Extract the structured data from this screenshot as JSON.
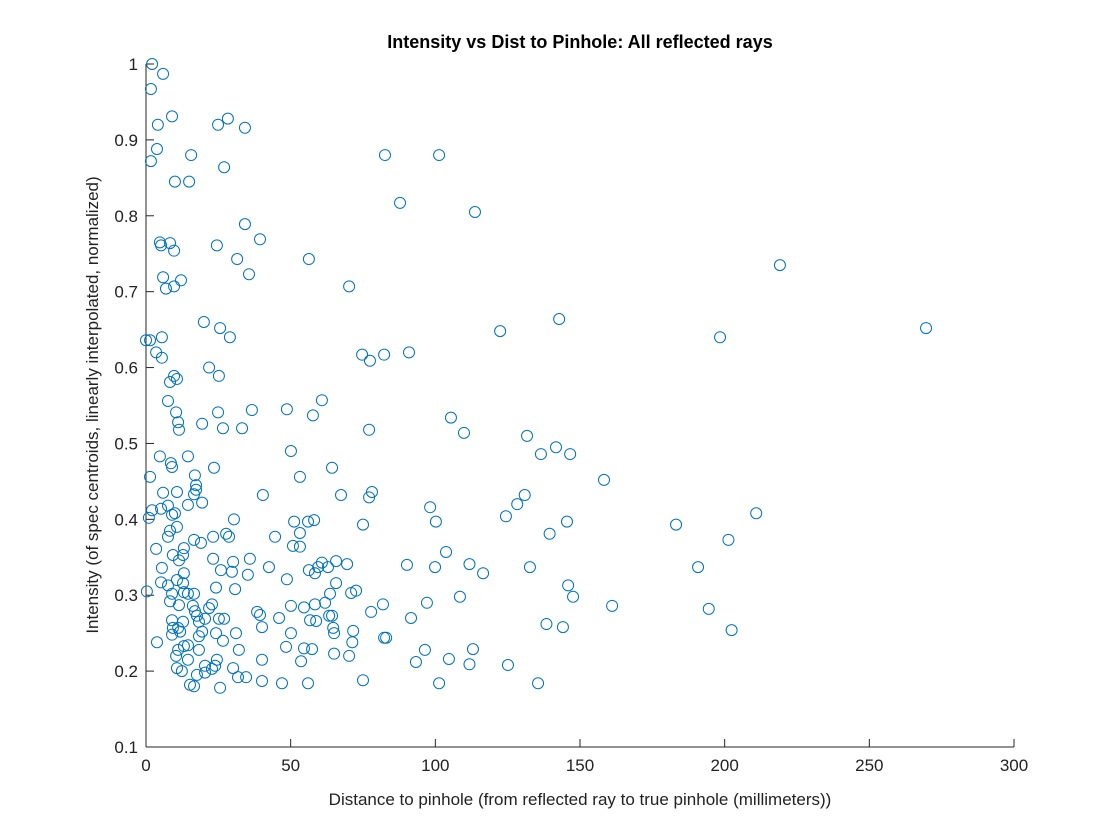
{
  "chart_data": {
    "type": "scatter",
    "title": "Intensity vs Dist to Pinhole: All reflected rays",
    "x_label": "Distance to pinhole (from reflected ray to true pinhole (millimeters))",
    "y_label": "Intensity (of spec centroids, linearly interpolated, normalized)",
    "xlim": [
      0,
      300
    ],
    "ylim": [
      0.1,
      1
    ],
    "xticks": [
      0,
      50,
      100,
      150,
      200,
      250,
      300
    ],
    "yticks": [
      0.1,
      0.2,
      0.3,
      0.4,
      0.5,
      0.6,
      0.7,
      0.8,
      0.9,
      1
    ],
    "color": "#0072bd",
    "x": [
      2.1,
      5.9,
      1.7,
      4.1,
      9.0,
      1.7,
      3.8,
      15.6,
      10.0,
      14.9,
      24.9,
      28.3,
      34.2,
      27.0,
      82.6,
      101.3,
      87.8,
      113.7,
      34.2,
      39.4,
      24.5,
      4.8,
      5.2,
      8.3,
      9.7,
      31.5,
      56.3,
      35.6,
      5.9,
      12.1,
      9.7,
      6.9,
      70.2,
      219.1,
      269.6,
      25.6,
      142.8,
      122.4,
      198.4,
      20.0,
      29.0,
      0,
      1.4,
      5.5,
      5.5,
      3.5,
      21.8,
      25.2,
      9.7,
      8.3,
      10.7,
      90.9,
      82.3,
      74.7,
      77.4,
      7.6,
      10.4,
      24.9,
      36.6,
      48.7,
      57.7,
      60.8,
      11.1,
      11.4,
      19.4,
      26.6,
      33.2,
      77.1,
      105.4,
      109.9,
      131.7,
      141.7,
      136.5,
      146.6,
      50.1,
      14.5,
      4.8,
      23.5,
      64.3,
      8.6,
      9.0,
      16.9,
      1.4,
      53.2,
      158.3,
      17.3,
      17.3,
      16.6,
      5.9,
      10.7,
      40.4,
      67.4,
      78.1,
      77.1,
      130.9,
      128.3,
      98.2,
      19.4,
      14.5,
      7.6,
      5.2,
      2.1,
      10.0,
      9.0,
      1.0,
      30.4,
      58.1,
      51.2,
      75.0,
      100.2,
      124.4,
      145.5,
      183.2,
      210.9,
      10.7,
      8.3,
      7.6,
      16.6,
      23.2,
      27.7,
      28.7,
      44.6,
      53.2,
      56.0,
      139.5,
      201.3,
      3.5,
      13.1,
      12.8,
      9.3,
      19.0,
      11.4,
      23.2,
      35.9,
      50.8,
      53.2,
      59.5,
      60.8,
      65.7,
      69.5,
      62.9,
      56.3,
      58.4,
      42.5,
      30.1,
      29.7,
      25.9,
      35.2,
      5.5,
      13.1,
      90.2,
      99.9,
      103.7,
      111.8,
      116.5,
      132.7,
      190.8,
      5.2,
      7.6,
      10.7,
      12.8,
      13.1,
      16.6,
      14.5,
      24.2,
      30.8,
      48.7,
      65.7,
      63.6,
      70.9,
      72.6,
      145.9,
      147.6,
      108.5,
      0.3,
      9.0,
      8.3,
      11.4,
      16.2,
      22.8,
      50.1,
      54.6,
      58.4,
      61.9,
      81.9,
      97.1,
      161.1,
      194.5,
      38.4,
      39.4,
      16.9,
      17.6,
      63.3,
      64.3,
      77.8,
      25.2,
      27.0,
      21.8,
      46.0,
      56.7,
      91.6,
      9.0,
      12.8,
      11.1,
      18.3,
      20.4,
      9.3,
      9.0,
      19.4,
      11.8,
      18.3,
      24.2,
      31.1,
      40.1,
      50.1,
      58.8,
      64.7,
      65.0,
      71.6,
      138.4,
      144.1,
      202.4,
      3.8,
      13.1,
      14.5,
      26.6,
      11.1,
      18.3,
      32.1,
      48.4,
      54.6,
      57.4,
      71.3,
      82.3,
      83.0,
      65.0,
      70.2,
      96.4,
      113.0,
      10.4,
      14.5,
      24.5,
      40.1,
      53.6,
      93.3,
      104.7,
      111.8,
      125.1,
      20.4,
      23.9,
      30.1,
      10.7,
      12.4,
      22.8,
      20.4,
      17.6,
      31.8,
      34.6,
      40.1,
      47.0,
      56.0,
      75.0,
      101.3,
      135.5,
      15.2,
      16.6,
      25.6
    ],
    "values": [
      1.0,
      0.987,
      0.967,
      0.92,
      0.931,
      0.872,
      0.888,
      0.88,
      0.845,
      0.845,
      0.92,
      0.928,
      0.916,
      0.864,
      0.88,
      0.88,
      0.817,
      0.805,
      0.789,
      0.769,
      0.761,
      0.765,
      0.761,
      0.764,
      0.754,
      0.743,
      0.743,
      0.723,
      0.719,
      0.715,
      0.707,
      0.704,
      0.707,
      0.735,
      0.652,
      0.652,
      0.664,
      0.648,
      0.64,
      0.66,
      0.64,
      0.636,
      0.636,
      0.64,
      0.613,
      0.62,
      0.6,
      0.589,
      0.589,
      0.581,
      0.585,
      0.62,
      0.617,
      0.617,
      0.609,
      0.556,
      0.541,
      0.541,
      0.544,
      0.545,
      0.537,
      0.557,
      0.528,
      0.518,
      0.526,
      0.52,
      0.52,
      0.518,
      0.534,
      0.514,
      0.51,
      0.495,
      0.486,
      0.486,
      0.49,
      0.483,
      0.483,
      0.468,
      0.468,
      0.474,
      0.469,
      0.458,
      0.456,
      0.456,
      0.452,
      0.445,
      0.439,
      0.433,
      0.435,
      0.436,
      0.432,
      0.432,
      0.436,
      0.429,
      0.432,
      0.42,
      0.416,
      0.422,
      0.419,
      0.418,
      0.414,
      0.412,
      0.408,
      0.406,
      0.402,
      0.4,
      0.399,
      0.397,
      0.393,
      0.397,
      0.404,
      0.397,
      0.393,
      0.408,
      0.39,
      0.385,
      0.377,
      0.373,
      0.377,
      0.381,
      0.377,
      0.377,
      0.382,
      0.397,
      0.381,
      0.373,
      0.361,
      0.362,
      0.353,
      0.353,
      0.369,
      0.346,
      0.348,
      0.348,
      0.365,
      0.364,
      0.337,
      0.343,
      0.345,
      0.341,
      0.337,
      0.333,
      0.329,
      0.337,
      0.344,
      0.331,
      0.333,
      0.327,
      0.336,
      0.329,
      0.34,
      0.337,
      0.357,
      0.341,
      0.329,
      0.337,
      0.337,
      0.317,
      0.313,
      0.32,
      0.316,
      0.304,
      0.302,
      0.302,
      0.31,
      0.308,
      0.321,
      0.316,
      0.302,
      0.303,
      0.306,
      0.313,
      0.298,
      0.298,
      0.305,
      0.302,
      0.292,
      0.287,
      0.286,
      0.288,
      0.286,
      0.284,
      0.288,
      0.29,
      0.288,
      0.29,
      0.286,
      0.282,
      0.278,
      0.274,
      0.279,
      0.273,
      0.273,
      0.273,
      0.278,
      0.269,
      0.269,
      0.283,
      0.27,
      0.267,
      0.27,
      0.267,
      0.265,
      0.257,
      0.265,
      0.269,
      0.257,
      0.248,
      0.252,
      0.252,
      0.246,
      0.25,
      0.25,
      0.258,
      0.25,
      0.266,
      0.257,
      0.25,
      0.253,
      0.262,
      0.258,
      0.254,
      0.238,
      0.233,
      0.234,
      0.24,
      0.228,
      0.228,
      0.228,
      0.232,
      0.23,
      0.229,
      0.238,
      0.244,
      0.244,
      0.223,
      0.22,
      0.228,
      0.229,
      0.22,
      0.215,
      0.215,
      0.215,
      0.213,
      0.212,
      0.216,
      0.209,
      0.208,
      0.207,
      0.207,
      0.204,
      0.204,
      0.2,
      0.203,
      0.198,
      0.195,
      0.192,
      0.192,
      0.187,
      0.184,
      0.184,
      0.188,
      0.184,
      0.184,
      0.182,
      0.18,
      0.178
    ]
  }
}
